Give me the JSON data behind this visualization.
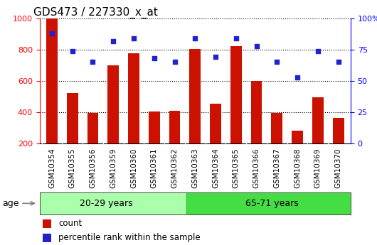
{
  "title": "GDS473 / 227330_x_at",
  "samples": [
    "GSM10354",
    "GSM10355",
    "GSM10356",
    "GSM10359",
    "GSM10360",
    "GSM10361",
    "GSM10362",
    "GSM10363",
    "GSM10364",
    "GSM10365",
    "GSM10366",
    "GSM10367",
    "GSM10368",
    "GSM10369",
    "GSM10370"
  ],
  "counts": [
    1000,
    520,
    395,
    700,
    775,
    405,
    410,
    805,
    455,
    820,
    600,
    395,
    280,
    495,
    365
  ],
  "percentile_ranks": [
    88,
    74,
    65,
    82,
    84,
    68,
    65,
    84,
    69,
    84,
    78,
    65,
    53,
    74,
    65
  ],
  "group1_label": "20-29 years",
  "group2_label": "65-71 years",
  "group1_count": 7,
  "group2_count": 8,
  "ylim_left": [
    200,
    1000
  ],
  "ylim_right": [
    0,
    100
  ],
  "bar_color": "#cc1100",
  "dot_color": "#2222cc",
  "group1_color": "#aaffaa",
  "group2_color": "#44dd44",
  "xtick_bg_color": "#d8d8d8",
  "legend_count_label": "count",
  "legend_pct_label": "percentile rank within the sample",
  "age_label": "age",
  "title_fontsize": 11,
  "tick_fontsize": 7.5,
  "axis_fontsize": 8,
  "legend_fontsize": 8.5
}
